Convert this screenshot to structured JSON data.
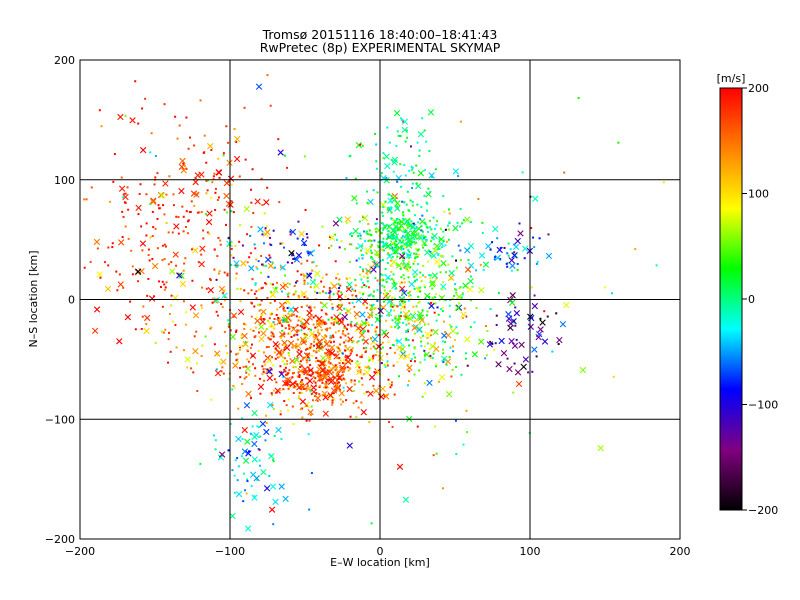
{
  "chart_data": {
    "type": "scatter",
    "title": "Tromsø 20151116 18:40:00–18:41:43",
    "subtitle": "RwPretec (8p) EXPERIMENTAL SKYMAP",
    "xlabel": "E–W location [km]",
    "ylabel": "N–S location [km]",
    "xlim": [
      -200,
      200
    ],
    "ylim": [
      -200,
      200
    ],
    "x_ticks": [
      -200,
      -100,
      0,
      100,
      200
    ],
    "y_ticks": [
      -200,
      -100,
      0,
      100,
      200
    ],
    "x_tick_labels": [
      "−200",
      "−100",
      "0",
      "100",
      "200"
    ],
    "y_tick_labels": [
      "−200",
      "−100",
      "0",
      "100",
      "200"
    ],
    "grid": true,
    "colorbar": {
      "label": "[m/s]",
      "range": [
        -200,
        200
      ],
      "ticks": [
        200,
        100,
        0,
        -100,
        -200
      ],
      "tick_labels": [
        "200",
        "100",
        "0",
        "−100",
        "−200"
      ],
      "colormap": [
        "#000000",
        "#800080",
        "#0000ff",
        "#00ffff",
        "#00ff00",
        "#ffff00",
        "#ff8000",
        "#ff0000"
      ]
    },
    "markers": {
      "small": "dot",
      "large": "x"
    },
    "clusters": [
      {
        "x": -45,
        "y": -40,
        "sx": 28,
        "sy": 28,
        "n": 520,
        "v": 160,
        "sv": 40,
        "px": 0.18
      },
      {
        "x": -60,
        "y": -15,
        "sx": 38,
        "sy": 32,
        "n": 300,
        "v": 130,
        "sv": 60,
        "px": 0.2
      },
      {
        "x": -140,
        "y": 60,
        "sx": 35,
        "sy": 48,
        "n": 240,
        "v": 185,
        "sv": 25,
        "px": 0.2
      },
      {
        "x": -40,
        "y": -65,
        "sx": 16,
        "sy": 10,
        "n": 160,
        "v": 170,
        "sv": 30,
        "px": 0.25
      },
      {
        "x": 15,
        "y": 55,
        "sx": 15,
        "sy": 12,
        "n": 260,
        "v": 10,
        "sv": 30,
        "px": 0.15
      },
      {
        "x": 15,
        "y": 10,
        "sx": 22,
        "sy": 28,
        "n": 380,
        "v": 30,
        "sv": 45,
        "px": 0.12
      },
      {
        "x": 25,
        "y": -35,
        "sx": 22,
        "sy": 22,
        "n": 140,
        "v": 60,
        "sv": 70,
        "px": 0.25
      },
      {
        "x": 12,
        "y": 105,
        "sx": 14,
        "sy": 30,
        "n": 100,
        "v": -10,
        "sv": 30,
        "px": 0.2
      },
      {
        "x": 80,
        "y": 40,
        "sx": 15,
        "sy": 10,
        "n": 45,
        "v": -80,
        "sv": 50,
        "px": 0.4
      },
      {
        "x": 95,
        "y": -30,
        "sx": 12,
        "sy": 16,
        "n": 50,
        "v": -140,
        "sv": 35,
        "px": 0.55
      },
      {
        "x": -85,
        "y": -135,
        "sx": 14,
        "sy": 22,
        "n": 70,
        "v": -30,
        "sv": 25,
        "px": 0.4
      },
      {
        "x": -110,
        "y": 70,
        "sx": 25,
        "sy": 40,
        "n": 70,
        "v": 150,
        "sv": 50,
        "px": 0.3
      },
      {
        "x": 0,
        "y": 0,
        "sx": 95,
        "sy": 95,
        "n": 180,
        "v": 40,
        "sv": 110,
        "px": 0.35
      },
      {
        "x": -60,
        "y": 30,
        "sx": 25,
        "sy": 20,
        "n": 80,
        "v": -60,
        "sv": 60,
        "px": 0.3
      }
    ]
  }
}
